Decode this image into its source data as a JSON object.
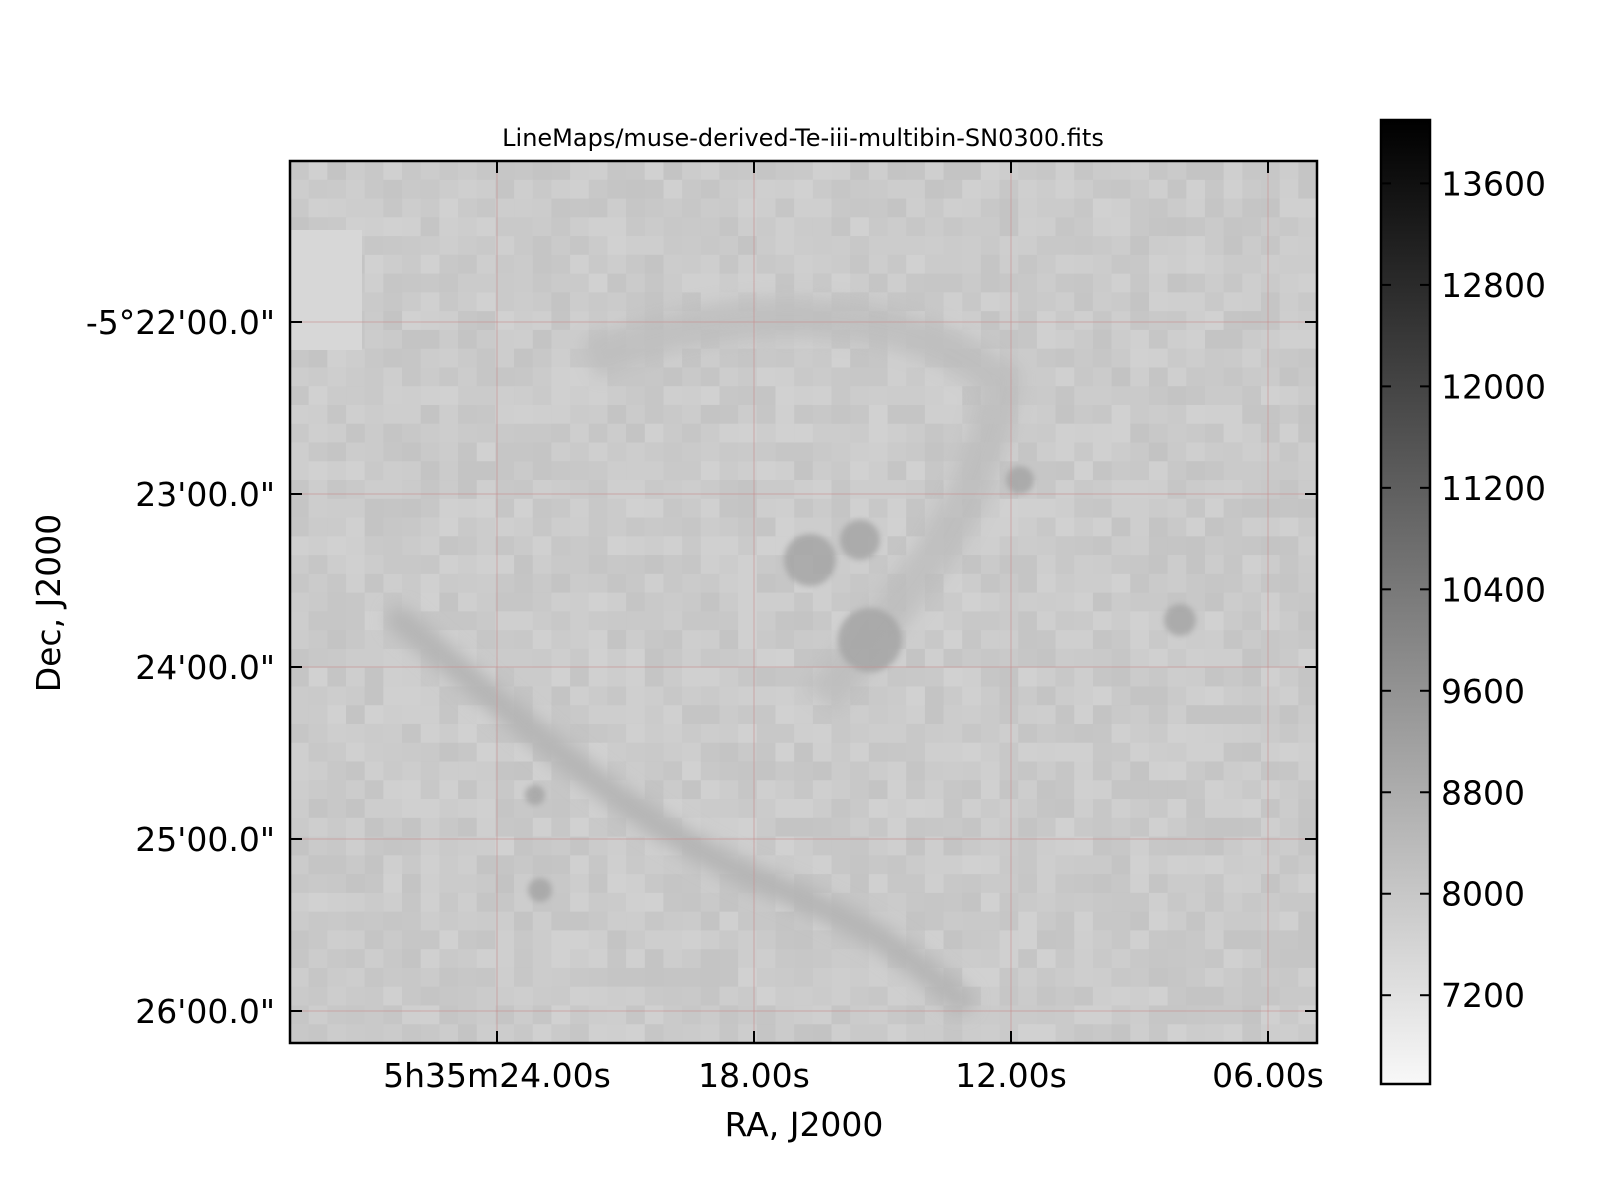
{
  "chart_data": {
    "type": "heatmap",
    "title": "LineMaps/muse-derived-Te-iii-multibin-SN0300.fits",
    "xlabel": "RA, J2000",
    "ylabel": "Dec, J2000",
    "x_ticks": [
      "5h35m24.00s",
      "18.00s",
      "12.00s",
      "06.00s"
    ],
    "y_ticks": [
      "-5°22'00.0\"",
      "23'00.0\"",
      "24'00.0\"",
      "25'00.0\"",
      "26'00.0\""
    ],
    "grid": true,
    "colormap": "gray_r",
    "colorbar": {
      "ticks": [
        "13600",
        "12800",
        "12000",
        "11200",
        "10400",
        "9600",
        "8800",
        "8000",
        "7200"
      ],
      "range": [
        6500,
        14100
      ]
    },
    "background_level": 7900,
    "features": [
      {
        "name": "diagonal bar",
        "value": 8550
      },
      {
        "name": "central knot",
        "value": 9000
      },
      {
        "name": "arc",
        "value": 8300
      }
    ]
  },
  "colors": {
    "background": "#ffffff",
    "axes": "#000000",
    "grid": "#c88c8c"
  }
}
